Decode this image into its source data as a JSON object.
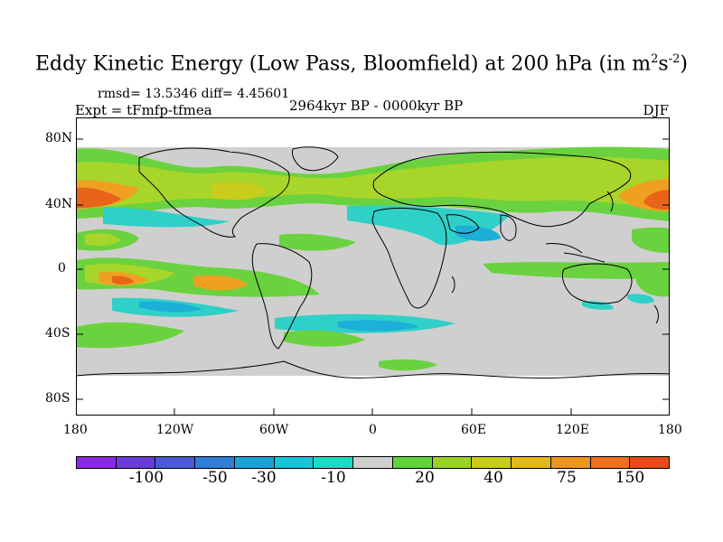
{
  "title_main": "Eddy Kinetic Energy (Low Pass, Bloomfield) at 200 hPa (in m",
  "title_sup1": "2",
  "title_s": "s",
  "title_sup2": "-2",
  "title_end": ")",
  "stats": "rmsd= 13.5346 diff= 4.45601",
  "experiment": "Expt = tFmfp-tfmea",
  "period": "2964kyr BP - 0000kyr BP",
  "season": "DJF",
  "y_ticks": [
    "80N",
    "40N",
    "0",
    "40S",
    "80S"
  ],
  "x_ticks": [
    "180",
    "120W",
    "60W",
    "0",
    "60E",
    "120E",
    "180"
  ],
  "colorbar": {
    "colors": [
      "#8a2be2",
      "#6a3dd6",
      "#4a5ad6",
      "#2f7ed8",
      "#1aa3d8",
      "#19c3d8",
      "#18dcc4",
      "#cfcfcf",
      "#5fd33a",
      "#9ad22a",
      "#c8cc1a",
      "#e2b81a",
      "#ee9420",
      "#ee7020",
      "#e84a1a"
    ],
    "labels": [
      "-100",
      "-50",
      "-30",
      "-10",
      "20",
      "40",
      "75",
      "150"
    ]
  },
  "legend_colors": {
    "land_none": "#cfcfcf",
    "low_pos": "#6ad23e",
    "mid_pos": "#a8d52a",
    "high_pos": "#f0a020",
    "very_high": "#e8641a",
    "low_neg": "#2fd0c8",
    "mid_neg": "#1ab0d8"
  }
}
